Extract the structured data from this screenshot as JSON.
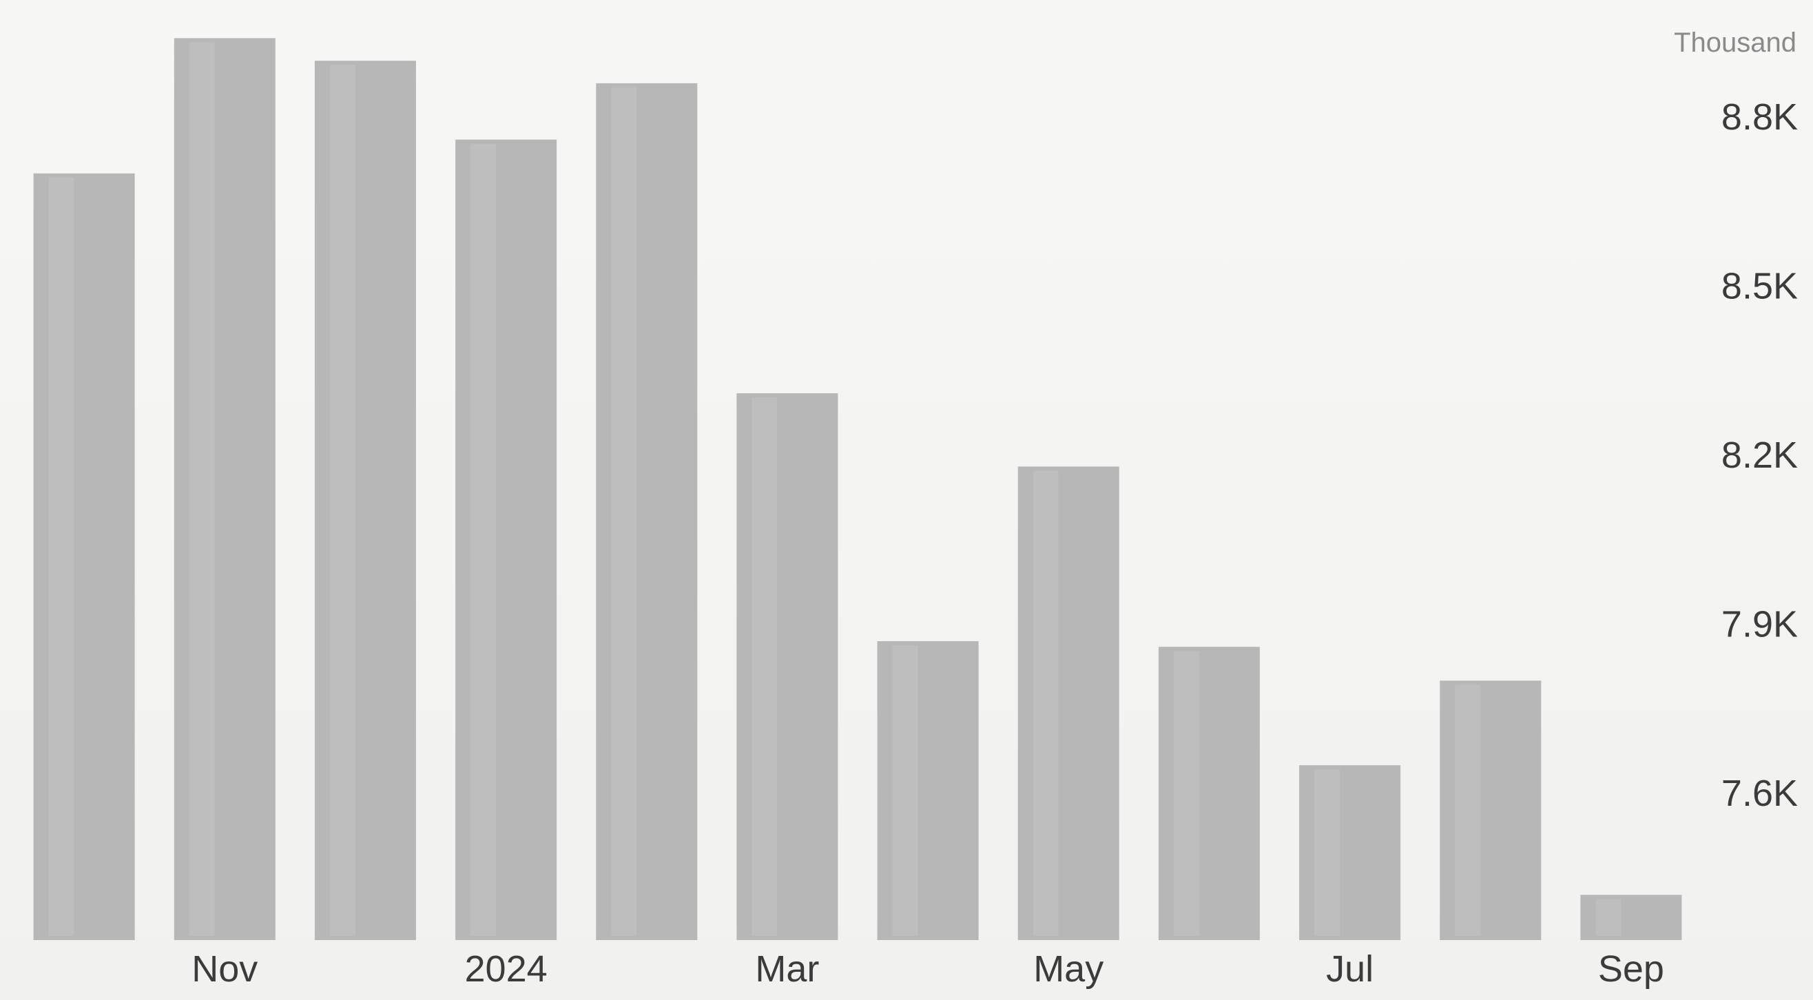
{
  "chart_data": {
    "type": "bar",
    "unit_label": "Thousand",
    "categories": [
      "",
      "Nov",
      "",
      "2024",
      "",
      "Mar",
      "",
      "May",
      "",
      "Jul",
      "",
      "Sep"
    ],
    "values": [
      8.7,
      8.94,
      8.9,
      8.76,
      8.86,
      8.31,
      7.87,
      8.18,
      7.86,
      7.65,
      7.8,
      7.42
    ],
    "ylim": [
      7.3,
      9.05
    ],
    "yticks": [
      {
        "value": 8.8,
        "label": "8.8K"
      },
      {
        "value": 8.5,
        "label": "8.5K"
      },
      {
        "value": 8.2,
        "label": "8.2K"
      },
      {
        "value": 7.9,
        "label": "7.9K"
      },
      {
        "value": 7.6,
        "label": "7.6K"
      }
    ],
    "y_axis_position": "right",
    "grid": false,
    "legend": "none",
    "colors": {
      "bar": "#b7b7b7",
      "text": "#3b3b3b",
      "unit": "#8a8a8a"
    }
  }
}
